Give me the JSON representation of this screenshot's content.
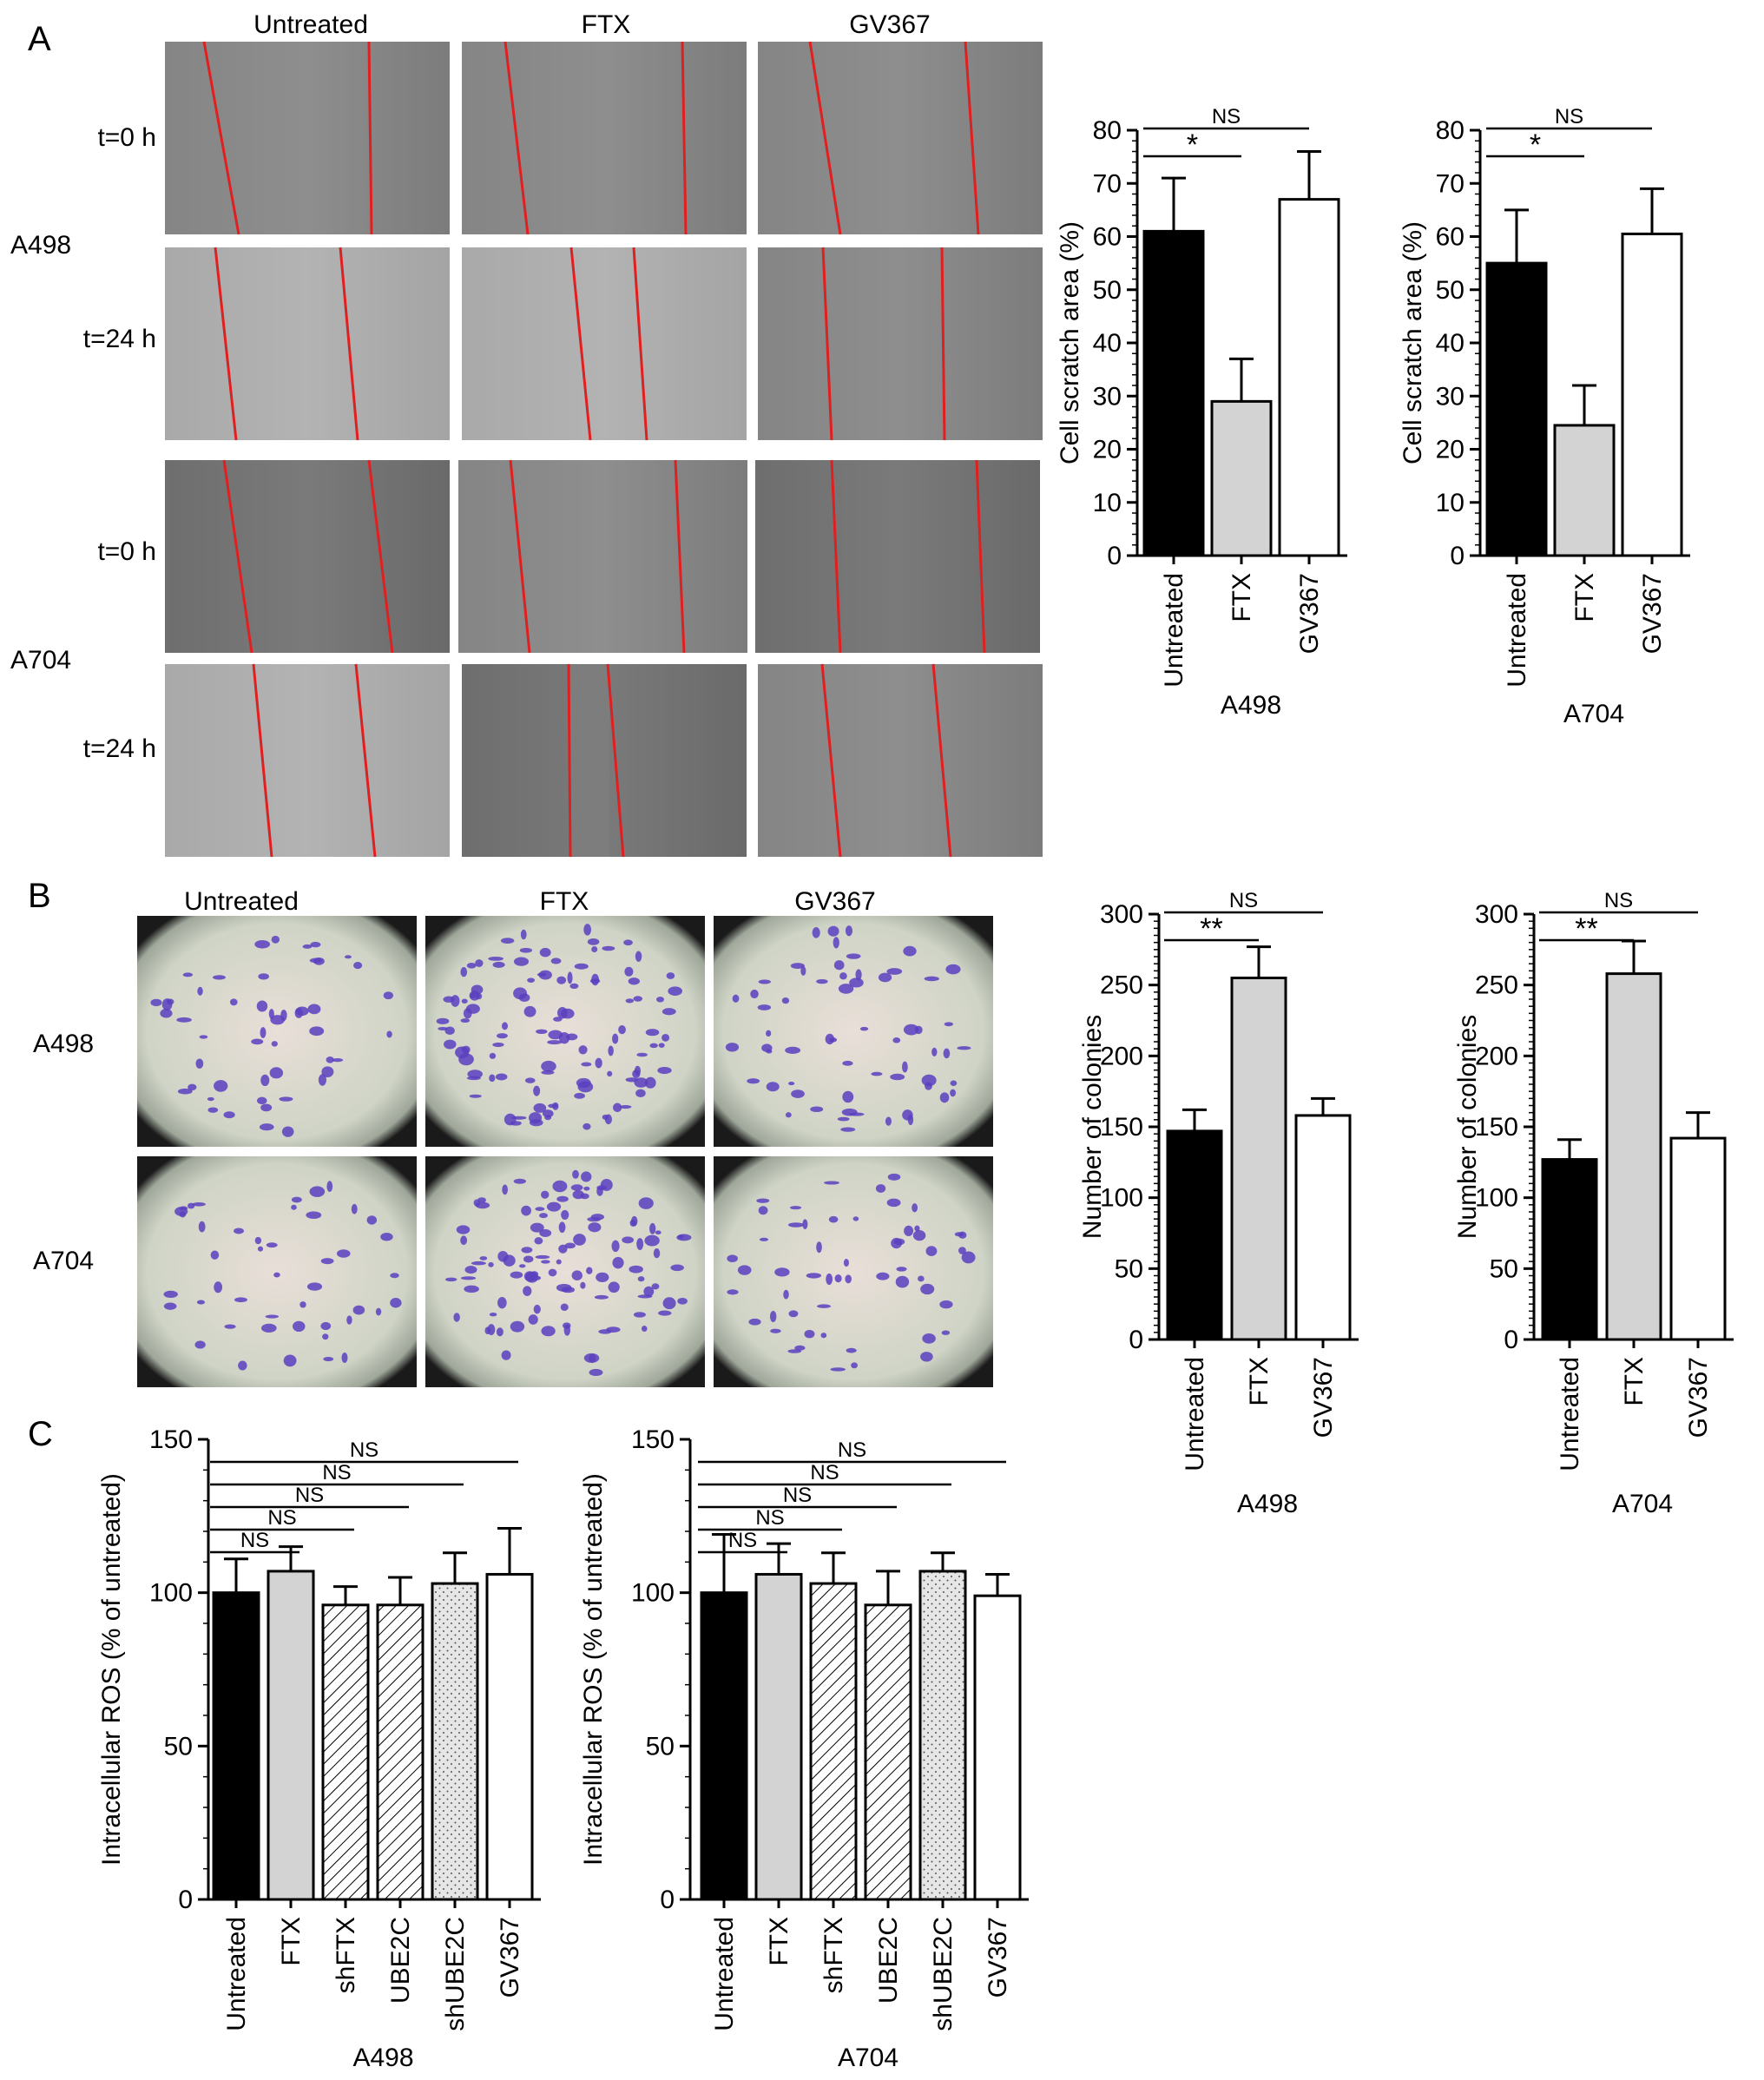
{
  "panel_labels": [
    "A",
    "B",
    "C"
  ],
  "panel_a": {
    "column_labels": [
      "Untreated",
      "FTX",
      "GV367"
    ],
    "row_labels": [
      "t=0 h",
      "t=24 h",
      "t=0 h",
      "t=24 h"
    ],
    "group_labels": [
      "A498",
      "A704"
    ]
  },
  "panel_b": {
    "column_labels": [
      "Untreated",
      "FTX",
      "GV367"
    ],
    "row_labels": [
      "A498",
      "A704"
    ]
  },
  "colors": {
    "untreated": "#000000",
    "ftx": "#d3d3d3",
    "gv367": "#ffffff",
    "scratch_line": "#e02020",
    "crystal_violet": "#5a3fbf"
  },
  "chart_data": [
    {
      "id": "a_a498",
      "type": "bar",
      "categories": [
        "Untreated",
        "FTX",
        "GV367"
      ],
      "values": [
        61,
        29,
        67
      ],
      "errors": [
        10,
        8,
        9
      ],
      "fills": [
        "black",
        "lightgray",
        "white"
      ],
      "ylabel": "Cell scratch area (%)",
      "xlabel": "A498",
      "ylim": [
        0,
        80
      ],
      "yticks": [
        0,
        10,
        20,
        30,
        40,
        50,
        60,
        70,
        80
      ],
      "significance": [
        {
          "from": 0,
          "to": 1,
          "label": "*"
        },
        {
          "from": 0,
          "to": 2,
          "label": "NS"
        }
      ]
    },
    {
      "id": "a_a704",
      "type": "bar",
      "categories": [
        "Untreated",
        "FTX",
        "GV367"
      ],
      "values": [
        55,
        24.5,
        60.5
      ],
      "errors": [
        10,
        7.5,
        8.5
      ],
      "fills": [
        "black",
        "lightgray",
        "white"
      ],
      "ylabel": "Cell scratch area (%)",
      "xlabel": "A704",
      "ylim": [
        0,
        80
      ],
      "yticks": [
        0,
        10,
        20,
        30,
        40,
        50,
        60,
        70,
        80
      ],
      "significance": [
        {
          "from": 0,
          "to": 1,
          "label": "*"
        },
        {
          "from": 0,
          "to": 2,
          "label": "NS"
        }
      ]
    },
    {
      "id": "b_a498",
      "type": "bar",
      "categories": [
        "Untreated",
        "FTX",
        "GV367"
      ],
      "values": [
        147,
        255,
        158
      ],
      "errors": [
        15,
        22,
        12
      ],
      "fills": [
        "black",
        "lightgray",
        "white"
      ],
      "ylabel": "Number of colonies",
      "xlabel": "A498",
      "ylim": [
        0,
        300
      ],
      "yticks": [
        0,
        50,
        100,
        150,
        200,
        250,
        300
      ],
      "significance": [
        {
          "from": 0,
          "to": 1,
          "label": "**"
        },
        {
          "from": 0,
          "to": 2,
          "label": "NS"
        }
      ]
    },
    {
      "id": "b_a704",
      "type": "bar",
      "categories": [
        "Untreated",
        "FTX",
        "GV367"
      ],
      "values": [
        127,
        258,
        142
      ],
      "errors": [
        14,
        23,
        18
      ],
      "fills": [
        "black",
        "lightgray",
        "white"
      ],
      "ylabel": "Number of colonies",
      "xlabel": "A704",
      "ylim": [
        0,
        300
      ],
      "yticks": [
        0,
        50,
        100,
        150,
        200,
        250,
        300
      ],
      "significance": [
        {
          "from": 0,
          "to": 1,
          "label": "**"
        },
        {
          "from": 0,
          "to": 2,
          "label": "NS"
        }
      ]
    },
    {
      "id": "c_a498",
      "type": "bar",
      "categories": [
        "Untreated",
        "FTX",
        "shFTX",
        "UBE2C",
        "shUBE2C",
        "GV367"
      ],
      "values": [
        100,
        107,
        96,
        96,
        103,
        106
      ],
      "errors": [
        11,
        8,
        6,
        9,
        10,
        15
      ],
      "fills": [
        "black",
        "lightgray",
        "hatch",
        "hatch",
        "dots",
        "white"
      ],
      "ylabel": "Intracellular ROS (% of untreated)",
      "xlabel": "A498",
      "ylim": [
        0,
        150
      ],
      "yticks": [
        0,
        50,
        100,
        150
      ],
      "significance": [
        {
          "from": 0,
          "to": 1,
          "label": "NS"
        },
        {
          "from": 0,
          "to": 2,
          "label": "NS"
        },
        {
          "from": 0,
          "to": 3,
          "label": "NS"
        },
        {
          "from": 0,
          "to": 4,
          "label": "NS"
        },
        {
          "from": 0,
          "to": 5,
          "label": "NS"
        }
      ]
    },
    {
      "id": "c_a704",
      "type": "bar",
      "categories": [
        "Untreated",
        "FTX",
        "shFTX",
        "UBE2C",
        "shUBE2C",
        "GV367"
      ],
      "values": [
        100,
        106,
        103,
        96,
        107,
        99
      ],
      "errors": [
        19,
        10,
        10,
        11,
        6,
        7
      ],
      "fills": [
        "black",
        "lightgray",
        "hatch",
        "hatch",
        "dots",
        "white"
      ],
      "ylabel": "Intracellular ROS (% of untreated)",
      "xlabel": "A704",
      "ylim": [
        0,
        150
      ],
      "yticks": [
        0,
        50,
        100,
        150
      ],
      "significance": [
        {
          "from": 0,
          "to": 1,
          "label": "NS"
        },
        {
          "from": 0,
          "to": 2,
          "label": "NS"
        },
        {
          "from": 0,
          "to": 3,
          "label": "NS"
        },
        {
          "from": 0,
          "to": 4,
          "label": "NS"
        },
        {
          "from": 0,
          "to": 5,
          "label": "NS"
        }
      ]
    }
  ]
}
